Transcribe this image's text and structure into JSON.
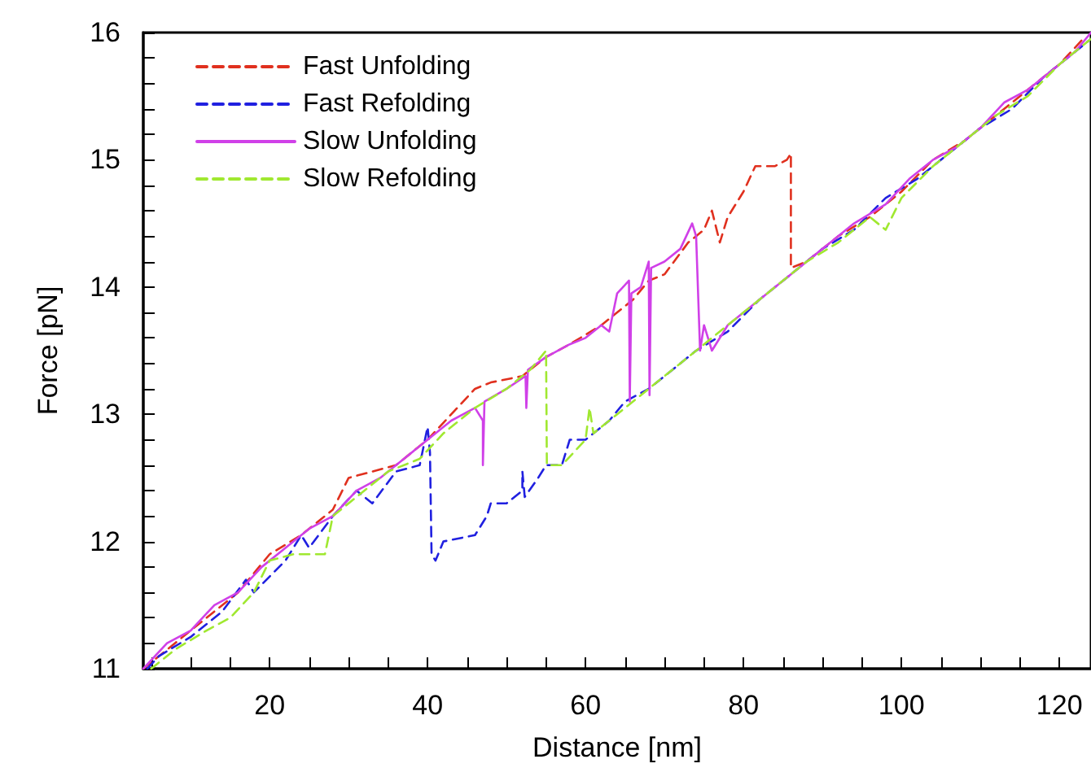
{
  "chart_data": {
    "type": "line",
    "xlabel": "Distance [nm]",
    "ylabel": "Force [pN]",
    "xlim": [
      4,
      124
    ],
    "ylim": [
      11,
      16
    ],
    "xticks": [
      {
        "value": 5,
        "label": null
      },
      {
        "value": 10,
        "label": null
      },
      {
        "value": 15,
        "label": null
      },
      20,
      {
        "value": 25,
        "label": null
      },
      {
        "value": 30,
        "label": null
      },
      {
        "value": 35,
        "label": null
      },
      40,
      {
        "value": 45,
        "label": null
      },
      {
        "value": 50,
        "label": null
      },
      {
        "value": 55,
        "label": null
      },
      60,
      {
        "value": 65,
        "label": null
      },
      {
        "value": 70,
        "label": null
      },
      {
        "value": 75,
        "label": null
      },
      80,
      {
        "value": 85,
        "label": null
      },
      {
        "value": 90,
        "label": null
      },
      {
        "value": 95,
        "label": null
      },
      100,
      {
        "value": 105,
        "label": null
      },
      {
        "value": 110,
        "label": null
      },
      {
        "value": 115,
        "label": null
      },
      120
    ],
    "yticks": [
      11,
      {
        "value": 11.2,
        "label": null
      },
      {
        "value": 11.4,
        "label": null
      },
      {
        "value": 11.6,
        "label": null
      },
      {
        "value": 11.8,
        "label": null
      },
      12,
      {
        "value": 12.2,
        "label": null
      },
      {
        "value": 12.4,
        "label": null
      },
      {
        "value": 12.6,
        "label": null
      },
      {
        "value": 12.8,
        "label": null
      },
      13,
      {
        "value": 13.2,
        "label": null
      },
      {
        "value": 13.4,
        "label": null
      },
      {
        "value": 13.6,
        "label": null
      },
      {
        "value": 13.8,
        "label": null
      },
      14,
      {
        "value": 14.2,
        "label": null
      },
      {
        "value": 14.4,
        "label": null
      },
      {
        "value": 14.6,
        "label": null
      },
      {
        "value": 14.8,
        "label": null
      },
      15,
      {
        "value": 15.2,
        "label": null
      },
      {
        "value": 15.4,
        "label": null
      },
      {
        "value": 15.6,
        "label": null
      },
      {
        "value": 15.8,
        "label": null
      },
      16
    ],
    "grid": false,
    "legend": "top left",
    "marker": "none",
    "series": [
      {
        "name": "Fast Unfolding",
        "color": "#e0301e",
        "line_style": "dashed",
        "x": [
          4,
          8,
          12,
          16,
          20,
          24,
          28,
          30,
          33,
          36,
          40,
          43,
          46,
          48,
          52,
          55,
          58,
          62,
          66,
          68,
          70,
          73,
          75,
          76,
          77,
          78,
          80,
          81.5,
          84,
          85.5,
          86,
          86,
          88,
          92,
          96,
          100,
          104,
          108,
          112,
          116,
          120,
          123
        ],
        "values": [
          11.0,
          11.2,
          11.4,
          11.6,
          11.9,
          12.05,
          12.25,
          12.5,
          12.55,
          12.6,
          12.8,
          13.0,
          13.2,
          13.25,
          13.3,
          13.45,
          13.55,
          13.7,
          13.9,
          14.05,
          14.1,
          14.35,
          14.45,
          14.6,
          14.35,
          14.55,
          14.75,
          14.95,
          14.95,
          15.0,
          15.05,
          14.15,
          14.2,
          14.4,
          14.55,
          14.75,
          15.0,
          15.15,
          15.35,
          15.55,
          15.75,
          15.95
        ]
      },
      {
        "name": "Fast Refolding",
        "color": "#2020e0",
        "line_style": "dashed",
        "x": [
          4.5,
          6,
          10,
          14,
          17,
          18,
          22,
          24,
          25,
          28,
          31,
          33,
          36,
          39,
          40,
          40.3,
          40.5,
          41,
          42,
          46,
          47.5,
          48,
          50,
          52,
          52,
          52.3,
          54,
          55,
          57,
          58,
          60,
          63,
          65,
          68,
          72,
          74,
          78,
          82,
          86,
          90,
          94,
          98,
          102,
          106,
          110,
          114,
          118,
          122,
          124
        ],
        "values": [
          11.0,
          11.1,
          11.25,
          11.45,
          11.7,
          11.6,
          11.85,
          12.05,
          11.95,
          12.2,
          12.4,
          12.3,
          12.55,
          12.6,
          12.9,
          12.7,
          11.9,
          11.85,
          12.0,
          12.05,
          12.2,
          12.3,
          12.3,
          12.4,
          12.55,
          12.35,
          12.5,
          12.6,
          12.6,
          12.8,
          12.8,
          12.95,
          13.1,
          13.2,
          13.4,
          13.5,
          13.65,
          13.9,
          14.1,
          14.3,
          14.45,
          14.7,
          14.85,
          15.05,
          15.25,
          15.4,
          15.65,
          15.85,
          15.95
        ]
      },
      {
        "name": "Slow Unfolding",
        "color": "#d040e8",
        "line_style": "solid",
        "x": [
          4,
          7,
          10,
          13,
          16,
          19,
          22,
          25,
          28,
          31,
          34,
          37,
          40,
          43,
          46,
          47,
          47,
          47.2,
          50,
          52.4,
          52.5,
          52.7,
          55,
          58,
          60,
          62,
          63,
          64,
          65.5,
          65.6,
          65.8,
          67,
          68,
          68.1,
          68.3,
          70,
          72,
          73.5,
          74,
          74.5,
          75,
          76,
          78,
          82,
          86,
          90,
          94,
          98,
          101,
          104,
          107,
          110,
          113,
          116,
          119,
          122,
          124
        ],
        "values": [
          11.0,
          11.2,
          11.3,
          11.5,
          11.6,
          11.8,
          11.95,
          12.1,
          12.2,
          12.4,
          12.5,
          12.65,
          12.8,
          12.95,
          13.05,
          12.95,
          12.6,
          13.1,
          13.2,
          13.3,
          13.05,
          13.35,
          13.45,
          13.55,
          13.6,
          13.7,
          13.65,
          13.95,
          14.05,
          13.1,
          13.95,
          14.0,
          14.2,
          13.15,
          14.15,
          14.2,
          14.3,
          14.5,
          14.4,
          13.5,
          13.7,
          13.5,
          13.7,
          13.9,
          14.1,
          14.3,
          14.5,
          14.65,
          14.85,
          15.0,
          15.1,
          15.25,
          15.45,
          15.55,
          15.7,
          15.85,
          16.0
        ]
      },
      {
        "name": "Slow Refolding",
        "color": "#a0e830",
        "line_style": "dashed",
        "x": [
          5,
          8,
          12,
          15,
          18,
          20,
          23,
          27,
          28,
          31,
          35,
          39,
          42,
          46,
          50,
          53,
          55,
          55.1,
          57,
          60,
          60.5,
          61,
          64,
          68,
          72,
          76,
          80,
          84,
          88,
          92,
          96,
          98,
          100,
          104,
          108,
          112,
          116,
          120,
          124
        ],
        "values": [
          11.0,
          11.15,
          11.3,
          11.4,
          11.6,
          11.85,
          11.9,
          11.9,
          12.2,
          12.35,
          12.55,
          12.65,
          12.85,
          13.05,
          13.2,
          13.35,
          13.5,
          12.6,
          12.6,
          12.8,
          13.05,
          12.85,
          13.0,
          13.2,
          13.4,
          13.6,
          13.8,
          14.0,
          14.2,
          14.35,
          14.55,
          14.45,
          14.7,
          14.95,
          15.15,
          15.35,
          15.5,
          15.75,
          15.95
        ]
      }
    ]
  }
}
